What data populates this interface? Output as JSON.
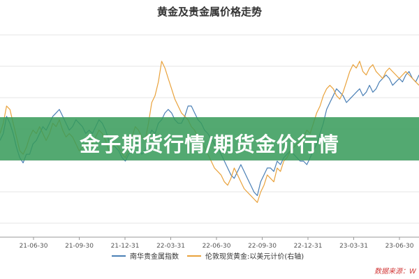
{
  "page": {
    "title": "黄金及贵金属价格走势",
    "banner": "金子期货行情/期货金价行情",
    "source": "数据来源：Wi"
  },
  "chart_data": {
    "type": "line",
    "title": "黄金及贵金属价格走势",
    "x_ticks": [
      "21-06-30",
      "21-09-30",
      "21-12-31",
      "22-03-31",
      "22-06-30",
      "22-09-30",
      "22-12-31",
      "23-03-31",
      "23-06-30"
    ],
    "grid": true,
    "legend_placement": "bottom-center",
    "series": [
      {
        "name": "南华贵金属指数",
        "color": "#4a7fb5",
        "values": [
          46,
          50,
          60,
          56,
          50,
          42,
          36,
          33,
          38,
          38,
          44,
          46,
          50,
          54,
          52,
          56,
          60,
          62,
          64,
          60,
          56,
          52,
          54,
          58,
          56,
          54,
          50,
          52,
          50,
          54,
          58,
          56,
          52,
          46,
          44,
          42,
          40,
          36,
          34,
          38,
          40,
          46,
          42,
          38,
          40,
          48,
          52,
          50,
          56,
          58,
          62,
          64,
          62,
          58,
          56,
          56,
          60,
          66,
          66,
          62,
          58,
          56,
          52,
          50,
          47,
          44,
          42,
          38,
          34,
          30,
          26,
          24,
          28,
          32,
          28,
          24,
          20,
          16,
          14,
          22,
          26,
          30,
          30,
          28,
          34,
          32,
          36,
          38,
          40,
          38,
          36,
          34,
          34,
          32,
          36,
          40,
          44,
          50,
          56,
          64,
          68,
          72,
          76,
          74,
          72,
          68,
          70,
          72,
          74,
          76,
          72,
          74,
          78,
          74,
          76,
          80,
          82,
          84,
          82,
          78,
          80,
          82,
          80,
          84,
          86,
          82,
          80,
          84
        ]
      },
      {
        "name": "伦敦现货黄金:以美元计价(右轴)",
        "color": "#e9a23b",
        "values": [
          50,
          56,
          66,
          64,
          56,
          48,
          40,
          38,
          42,
          48,
          52,
          50,
          54,
          50,
          46,
          50,
          56,
          54,
          58,
          52,
          48,
          50,
          48,
          44,
          40,
          42,
          44,
          46,
          44,
          48,
          52,
          50,
          46,
          40,
          42,
          44,
          42,
          38,
          36,
          40,
          48,
          54,
          52,
          48,
          46,
          56,
          68,
          72,
          80,
          92,
          88,
          82,
          76,
          70,
          66,
          62,
          60,
          58,
          54,
          52,
          48,
          46,
          42,
          38,
          34,
          30,
          28,
          26,
          22,
          20,
          24,
          30,
          26,
          22,
          18,
          16,
          14,
          12,
          10,
          16,
          20,
          26,
          24,
          22,
          30,
          28,
          34,
          36,
          40,
          42,
          44,
          46,
          48,
          52,
          50,
          56,
          62,
          66,
          72,
          76,
          78,
          76,
          72,
          70,
          74,
          80,
          86,
          90,
          88,
          92,
          86,
          84,
          88,
          90,
          86,
          84,
          82,
          86,
          88,
          86,
          84,
          82,
          84,
          86,
          84,
          82,
          80,
          78
        ]
      }
    ]
  }
}
